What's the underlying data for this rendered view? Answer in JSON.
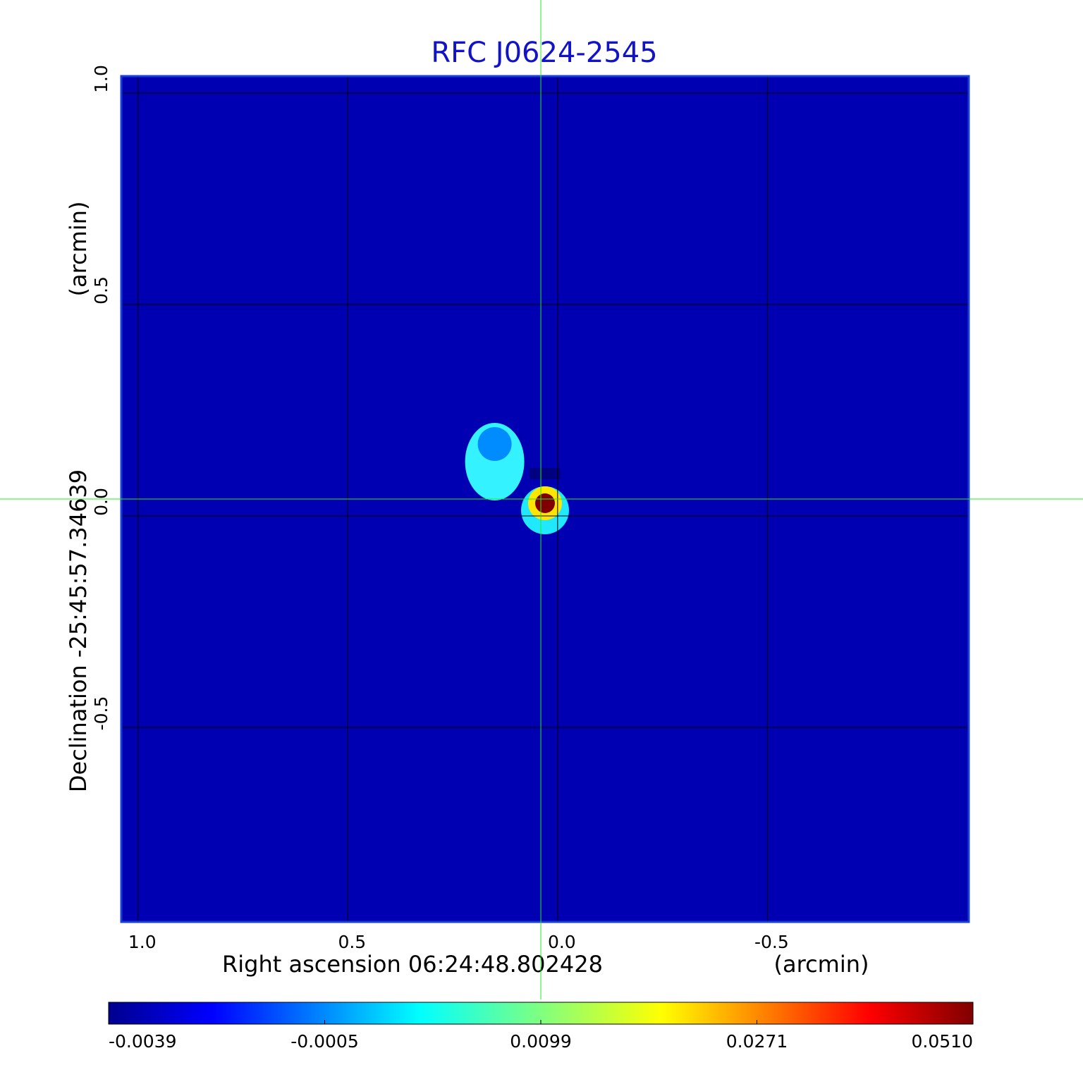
{
  "chart_data": {
    "type": "heatmap",
    "title": "RFC J0624-2545",
    "xlabel": "Right ascension  06:24:48.802428",
    "xunit": "(arcmin)",
    "ylabel": "Declination  -25:45:57.34639",
    "yunit": "(arcmin)",
    "xlim": [
      1.04,
      -0.98
    ],
    "ylim": [
      -0.96,
      1.04
    ],
    "x_ticks": [
      {
        "value": 1.0,
        "label": "1.0"
      },
      {
        "value": 0.5,
        "label": "0.5"
      },
      {
        "value": 0.0,
        "label": "0.0"
      },
      {
        "value": -0.5,
        "label": "-0.5"
      }
    ],
    "y_ticks": [
      {
        "value": 1.0,
        "label": "1.0"
      },
      {
        "value": 0.5,
        "label": "0.5"
      },
      {
        "value": 0.0,
        "label": "0.0"
      },
      {
        "value": -0.5,
        "label": "-0.5"
      }
    ],
    "grid": true,
    "crosshair": {
      "x": 0.04,
      "y": 0.04
    },
    "colormap": "jet",
    "colorbar": {
      "min": -0.0039,
      "max": 0.051,
      "ticks": [
        "-0.0039",
        "-0.0005",
        "0.0099",
        "0.0271",
        "0.0510"
      ]
    },
    "background_level": -0.0012,
    "features": [
      {
        "name": "peak",
        "x": 0.03,
        "y": 0.03,
        "value": 0.051
      },
      {
        "name": "negative lobe",
        "x": 0.03,
        "y": 0.1,
        "value": -0.0039
      },
      {
        "name": "secondary component",
        "x": 0.15,
        "y": 0.17,
        "value": 0.0105
      }
    ]
  },
  "colors": {
    "title": "#1212c8",
    "frame": "#1a3fd6",
    "grid": "#000000",
    "crosshair": "#22ee22"
  }
}
